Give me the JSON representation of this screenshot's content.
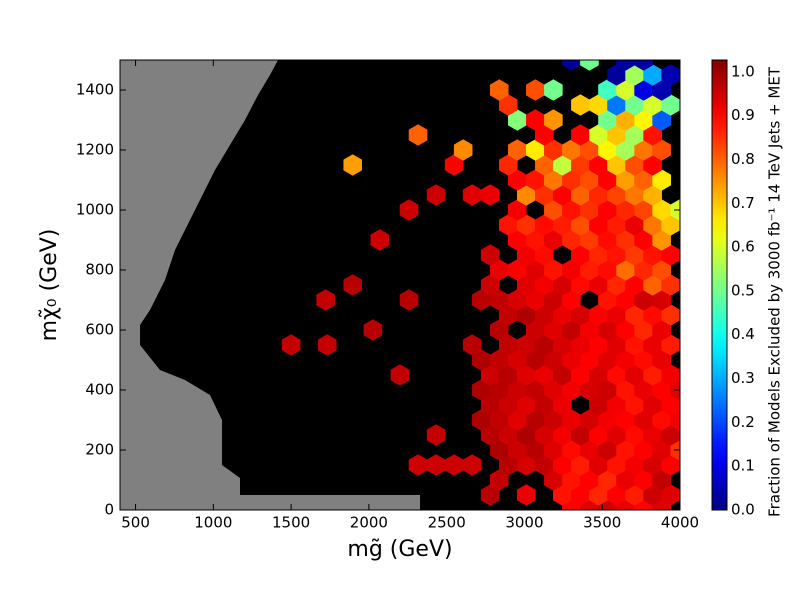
{
  "chart_data": {
    "type": "hexbin",
    "x_label": "mg̃ (GeV)",
    "y_label": "mχ̃₀  (GeV)",
    "colorbar_label": "Fraction of Models Excluded by 3000 fb⁻¹ 14 TeV Jets + MET",
    "colormap": "jet",
    "xlim": [
      400,
      4000
    ],
    "xticks": [
      500,
      1000,
      1500,
      2000,
      2500,
      3000,
      3500,
      4000
    ],
    "ylim": [
      0,
      1500
    ],
    "yticks": [
      0,
      200,
      400,
      600,
      800,
      1000,
      1200,
      1400
    ],
    "clim": [
      0,
      1.027
    ],
    "cticks": [
      {
        "value": 0,
        "label": "0.0"
      },
      {
        "value": 0.1,
        "label": "0.1"
      },
      {
        "value": 0.2,
        "label": "0.2"
      },
      {
        "value": 0.3,
        "label": "0.3"
      },
      {
        "value": 0.4,
        "label": "0.4"
      },
      {
        "value": 0.5,
        "label": "0.5"
      },
      {
        "value": 0.6,
        "label": "0.6"
      },
      {
        "value": 0.7,
        "label": "0.7"
      },
      {
        "value": 0.8,
        "label": "0.8"
      },
      {
        "value": 0.9,
        "label": "0.9"
      },
      {
        "value": 1,
        "label": "1.0"
      }
    ],
    "x": [
      3302,
      3418,
      3534,
      3650,
      3766,
      3882,
      2780,
      3012,
      3244,
      3360,
      3476,
      3592,
      3708,
      3824,
      3940,
      2838,
      3186,
      3302,
      3418,
      3534,
      3650,
      3766,
      3882,
      2316,
      2432,
      2548,
      2664,
      2896,
      3012,
      3128,
      3244,
      3360,
      3476,
      3592,
      3708,
      3824,
      3940,
      2838,
      2954,
      3070,
      3186,
      3302,
      3418,
      3534,
      3650,
      3766,
      3882,
      3998,
      2432,
      2780,
      2896,
      3012,
      3128,
      3244,
      3360,
      3476,
      3592,
      3708,
      3824,
      3940,
      2722,
      2838,
      2954,
      3070,
      3186,
      3302,
      3418,
      3534,
      3650,
      3766,
      3882,
      3998,
      2780,
      2896,
      3012,
      3128,
      3244,
      3476,
      3592,
      3708,
      3824,
      3940,
      2722,
      2838,
      2954,
      3070,
      3186,
      3302,
      3418,
      3534,
      3650,
      3766,
      3882,
      3998,
      2200,
      2780,
      2896,
      3012,
      3128,
      3244,
      3360,
      3476,
      3592,
      3708,
      3824,
      3940,
      2722,
      2838,
      2954,
      3070,
      3186,
      3302,
      3418,
      3534,
      3650,
      3766,
      3882,
      1500,
      1732,
      2664,
      2896,
      3012,
      3128,
      3244,
      3360,
      3476,
      3592,
      3708,
      3824,
      3940,
      2026,
      2838,
      3070,
      3186,
      3302,
      3418,
      3534,
      3650,
      3766,
      3882,
      2896,
      3012,
      3128,
      3244,
      3360,
      3476,
      3592,
      3708,
      3824,
      3940,
      1722,
      2258,
      2722,
      2838,
      2954,
      3070,
      3186,
      3302,
      3534,
      3650,
      3766,
      3882,
      1896,
      2780,
      3012,
      3128,
      3244,
      3360,
      3476,
      3592,
      3708,
      3824,
      3940,
      2838,
      2954,
      3070,
      3186,
      3302,
      3418,
      3534,
      3650,
      3766,
      3882,
      2780,
      3012,
      3128,
      3360,
      3476,
      3592,
      3708,
      3824,
      3940,
      2070,
      2954,
      3070,
      3186,
      3302,
      3418,
      3534,
      3650,
      3766,
      3882,
      2896,
      3012,
      3128,
      3244,
      3360,
      3476,
      3592,
      3708,
      3824,
      3940,
      2258,
      2954,
      3186,
      3302,
      3418,
      3534,
      3650,
      3766,
      3882,
      3998,
      2432,
      2664,
      2780,
      3012,
      3128,
      3244,
      3360,
      3476,
      3592,
      3708,
      3824,
      2954,
      3070,
      3186,
      3302,
      3418,
      3534,
      3650,
      3766,
      3882,
      1896,
      2548,
      2896,
      3128,
      3244,
      3360,
      3476,
      3592,
      3708,
      3824,
      2606,
      2954,
      3070,
      3186,
      3302,
      3418,
      3534,
      3650,
      3766,
      3882,
      2316,
      3128,
      3360,
      3476,
      3592,
      3708,
      3824,
      2954,
      3070,
      3186,
      3534,
      3650,
      3766,
      3882,
      2896,
      3360,
      3476,
      3592,
      3708,
      3824,
      3940,
      2838,
      3070,
      3186,
      3534,
      3650,
      3766,
      3882,
      3592,
      3708,
      3824,
      3940,
      3302,
      3418,
      3650,
      3766
    ],
    "y": [
      0,
      0,
      0,
      0,
      0,
      0,
      50,
      50,
      50,
      50,
      50,
      50,
      50,
      50,
      50,
      100,
      100,
      100,
      100,
      100,
      100,
      100,
      100,
      150,
      150,
      150,
      150,
      150,
      150,
      150,
      150,
      150,
      150,
      150,
      150,
      150,
      150,
      200,
      200,
      200,
      200,
      200,
      200,
      200,
      200,
      200,
      200,
      200,
      250,
      250,
      250,
      250,
      250,
      250,
      250,
      250,
      250,
      250,
      250,
      250,
      300,
      300,
      300,
      300,
      300,
      300,
      300,
      300,
      300,
      300,
      300,
      300,
      350,
      350,
      350,
      350,
      350,
      350,
      350,
      350,
      350,
      350,
      400,
      400,
      400,
      400,
      400,
      400,
      400,
      400,
      400,
      400,
      400,
      400,
      450,
      450,
      450,
      450,
      450,
      450,
      450,
      450,
      450,
      450,
      450,
      450,
      500,
      500,
      500,
      500,
      500,
      500,
      500,
      500,
      500,
      500,
      500,
      550,
      550,
      550,
      550,
      550,
      550,
      550,
      550,
      550,
      550,
      550,
      550,
      550,
      600,
      600,
      600,
      600,
      600,
      600,
      600,
      600,
      600,
      600,
      650,
      650,
      650,
      650,
      650,
      650,
      650,
      650,
      650,
      650,
      700,
      700,
      700,
      700,
      700,
      700,
      700,
      700,
      700,
      700,
      700,
      700,
      750,
      750,
      750,
      750,
      750,
      750,
      750,
      750,
      750,
      750,
      750,
      800,
      800,
      800,
      800,
      800,
      800,
      800,
      800,
      800,
      800,
      850,
      850,
      850,
      850,
      850,
      850,
      850,
      850,
      850,
      900,
      900,
      900,
      900,
      900,
      900,
      900,
      900,
      900,
      900,
      950,
      950,
      950,
      950,
      950,
      950,
      950,
      950,
      950,
      950,
      1000,
      1000,
      1000,
      1000,
      1000,
      1000,
      1000,
      1000,
      1000,
      1000,
      1050,
      1050,
      1050,
      1050,
      1050,
      1050,
      1050,
      1050,
      1050,
      1050,
      1050,
      1100,
      1100,
      1100,
      1100,
      1100,
      1100,
      1100,
      1100,
      1100,
      1150,
      1150,
      1150,
      1150,
      1150,
      1150,
      1150,
      1150,
      1150,
      1150,
      1200,
      1200,
      1200,
      1200,
      1200,
      1200,
      1200,
      1200,
      1200,
      1200,
      1250,
      1250,
      1250,
      1250,
      1250,
      1250,
      1250,
      1300,
      1300,
      1300,
      1300,
      1300,
      1300,
      1300,
      1350,
      1350,
      1350,
      1350,
      1350,
      1350,
      1350,
      1400,
      1400,
      1400,
      1400,
      1400,
      1400,
      1400,
      1450,
      1450,
      1450,
      1450,
      1500,
      1500,
      1500,
      1500
    ],
    "values": [
      0.9,
      0.93,
      0.95,
      0.92,
      0.9,
      0.93,
      0.97,
      0.92,
      0.88,
      0.9,
      0.86,
      0.9,
      0.87,
      0.95,
      0.93,
      0.96,
      0.94,
      0.88,
      0.9,
      0.86,
      0.92,
      0.9,
      0.96,
      0.95,
      0.95,
      0.95,
      0.95,
      0.97,
      0.94,
      0.96,
      0.9,
      0.87,
      0.93,
      0.88,
      0.91,
      0.94,
      0.9,
      0.98,
      0.95,
      0.97,
      0.93,
      0.89,
      0.92,
      0.95,
      0.88,
      0.9,
      0.93,
      0.85,
      0.96,
      0.97,
      0.95,
      0.98,
      0.94,
      0.91,
      0.96,
      0.9,
      0.93,
      0.89,
      0.92,
      0.95,
      0.98,
      0.96,
      0.93,
      0.97,
      0.95,
      0.92,
      0.94,
      0.91,
      0.9,
      0.93,
      0.89,
      0.91,
      0.97,
      0.95,
      0.93,
      0.96,
      0.92,
      0.95,
      0.91,
      0.88,
      0.93,
      0.9,
      0.98,
      0.97,
      0.95,
      0.96,
      0.93,
      0.91,
      0.94,
      0.95,
      0.88,
      0.92,
      0.9,
      0.93,
      0.96,
      0.95,
      0.97,
      0.93,
      0.92,
      0.96,
      0.9,
      0.94,
      0.89,
      0.93,
      0.87,
      0.91,
      0.98,
      0.96,
      0.94,
      0.97,
      0.95,
      0.92,
      0.9,
      0.93,
      0.91,
      0.89,
      0.92,
      0.96,
      0.96,
      0.97,
      0.96,
      0.95,
      0.97,
      0.94,
      0.92,
      0.9,
      0.93,
      0.88,
      0.92,
      0.87,
      0.97,
      0.97,
      0.95,
      0.93,
      0.96,
      0.91,
      0.94,
      0.9,
      0.86,
      0.92,
      0.96,
      0.98,
      0.95,
      0.92,
      0.94,
      0.9,
      0.92,
      0.86,
      0.89,
      0.85,
      0.96,
      0.97,
      0.97,
      0.96,
      0.94,
      0.92,
      0.95,
      0.9,
      0.88,
      0.9,
      0.95,
      0.94,
      0.97,
      0.95,
      0.93,
      0.91,
      0.94,
      0.89,
      0.92,
      0.86,
      0.9,
      0.8,
      0.85,
      0.92,
      0.9,
      0.93,
      0.88,
      0.91,
      0.87,
      0.89,
      0.79,
      0.86,
      0.82,
      0.95,
      0.91,
      0.89,
      0.9,
      0.86,
      0.88,
      0.84,
      0.88,
      0.9,
      0.95,
      0.9,
      0.88,
      0.92,
      0.86,
      0.84,
      0.89,
      0.85,
      0.9,
      0.75,
      0.88,
      0.85,
      0.89,
      0.87,
      0.82,
      0.9,
      0.87,
      0.92,
      0.78,
      0.7,
      0.95,
      0.91,
      0.82,
      0.88,
      0.85,
      0.9,
      0.86,
      0.83,
      0.68,
      0.6,
      0.95,
      0.93,
      0.92,
      0.76,
      0.85,
      0.9,
      0.8,
      0.86,
      0.83,
      0.78,
      0.72,
      0.9,
      0.88,
      0.78,
      0.85,
      0.82,
      0.9,
      0.74,
      0.8,
      0.66,
      0.74,
      0.9,
      0.86,
      0.8,
      0.58,
      0.84,
      0.9,
      0.7,
      0.82,
      0.9,
      0.76,
      0.8,
      0.66,
      0.85,
      0.78,
      0.82,
      0.65,
      0.55,
      0.78,
      0.82,
      0.8,
      0.9,
      0.9,
      0.6,
      0.7,
      0.55,
      0.88,
      0.52,
      0.9,
      0.75,
      0.5,
      0.72,
      0.65,
      0.22,
      0.85,
      0.7,
      0.68,
      0.25,
      0.5,
      0.6,
      0.5,
      0.8,
      0.82,
      0.5,
      0.45,
      0.6,
      0.1,
      0.05,
      0.03,
      0.55,
      0.3,
      0.05,
      0.02,
      0.5,
      0.03,
      0.03
    ]
  }
}
